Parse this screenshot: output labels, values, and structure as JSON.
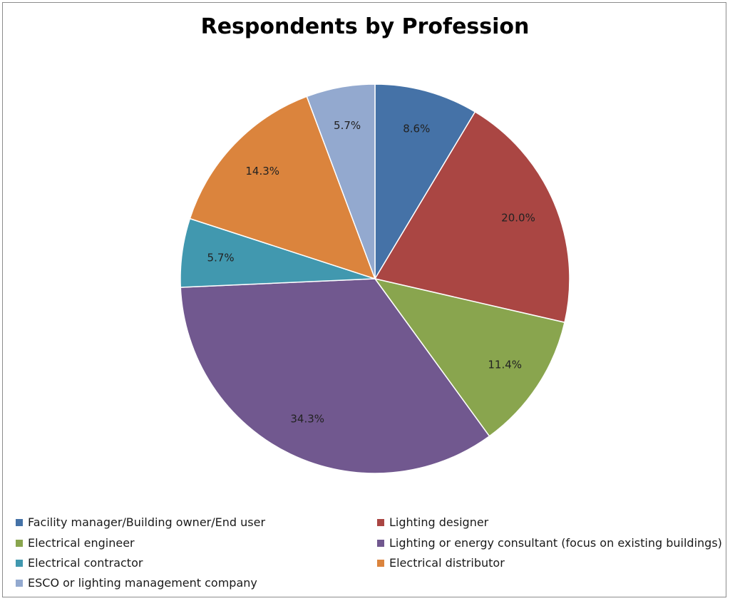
{
  "chart_data": {
    "type": "pie",
    "title": "Respondents by Profession",
    "start_angle_deg": 0,
    "direction": "clockwise",
    "slices": [
      {
        "name": "Facility manager/Building owner/End user",
        "value": 8.6,
        "label": "8.6%",
        "color": "#4572a7"
      },
      {
        "name": "Lighting designer",
        "value": 20.0,
        "label": "20.0%",
        "color": "#aa4643"
      },
      {
        "name": "Electrical engineer",
        "value": 11.4,
        "label": "11.4%",
        "color": "#89a54e"
      },
      {
        "name": "Lighting or energy consultant (focus on existing buildings)",
        "value": 34.3,
        "label": "34.3%",
        "color": "#71588f"
      },
      {
        "name": "Electrical contractor",
        "value": 5.7,
        "label": "5.7%",
        "color": "#4198af"
      },
      {
        "name": "Electrical distributor",
        "value": 14.3,
        "label": "14.3%",
        "color": "#db843d"
      },
      {
        "name": "ESCO or lighting management company",
        "value": 5.7,
        "label": "5.7%",
        "color": "#93a9cf"
      }
    ],
    "legend_position": "bottom"
  }
}
